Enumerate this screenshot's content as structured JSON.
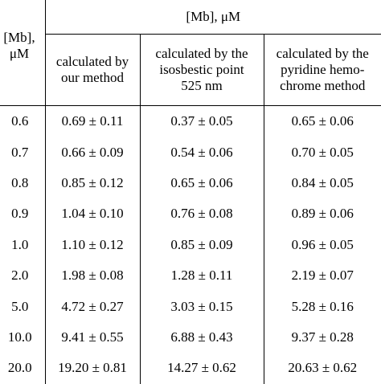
{
  "header": {
    "first_col_label": [
      "[Mb],",
      "μM"
    ],
    "group_label": "[Mb], μM",
    "columns": [
      [
        "calculated by",
        "our method"
      ],
      [
        "calculated by the",
        "isosbestic point",
        "525 nm"
      ],
      [
        "calculated by the",
        "pyridine hemo-",
        "chrome method"
      ]
    ]
  },
  "rows": [
    {
      "mb": "0.6",
      "ours": "0.69 ± 0.11",
      "iso": "0.37 ± 0.05",
      "pyr": "0.65 ± 0.06"
    },
    {
      "mb": "0.7",
      "ours": "0.66 ± 0.09",
      "iso": "0.54 ± 0.06",
      "pyr": "0.70 ± 0.05"
    },
    {
      "mb": "0.8",
      "ours": "0.85 ± 0.12",
      "iso": "0.65 ± 0.06",
      "pyr": "0.84 ± 0.05"
    },
    {
      "mb": "0.9",
      "ours": "1.04 ± 0.10",
      "iso": "0.76 ± 0.08",
      "pyr": "0.89 ± 0.06"
    },
    {
      "mb": "1.0",
      "ours": "1.10 ± 0.12",
      "iso": "0.85 ± 0.09",
      "pyr": "0.96 ± 0.05"
    },
    {
      "mb": "2.0",
      "ours": "1.98 ± 0.08",
      "iso": "1.28 ± 0.11",
      "pyr": "2.19 ± 0.07"
    },
    {
      "mb": "5.0",
      "ours": "4.72 ± 0.27",
      "iso": "3.03 ± 0.15",
      "pyr": "5.28 ± 0.16"
    },
    {
      "mb": "10.0",
      "ours": "9.41 ± 0.55",
      "iso": "6.88 ± 0.43",
      "pyr": "9.37 ± 0.28"
    },
    {
      "mb": "20.0",
      "ours": "19.20 ± 0.81",
      "iso": "14.27 ± 0.62",
      "pyr": "20.63 ± 0.62"
    }
  ]
}
